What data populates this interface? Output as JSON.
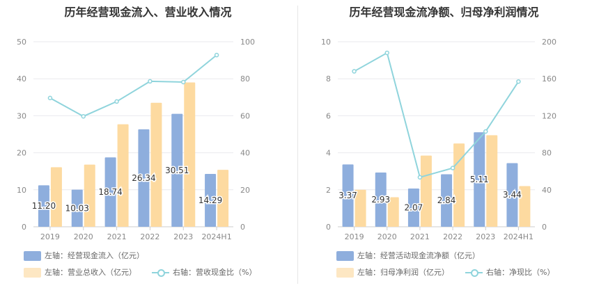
{
  "charts": [
    {
      "title": "历年经营现金流入、营业收入情况",
      "legend": [
        {
          "label": "左轴：经营现金流入（亿元）",
          "color": "#8eaedd"
        },
        {
          "label": "左轴：营业总收入（亿元）",
          "color": "#fddaa0"
        },
        {
          "label": "右轴：营收现金比（%）",
          "color": "#8fd4dc"
        }
      ],
      "chart_data": {
        "type": "bar",
        "categories": [
          "2019",
          "2020",
          "2021",
          "2022",
          "2023",
          "2024H1"
        ],
        "series": [
          {
            "name": "左轴：经营现金流入（亿元）",
            "axis": "left",
            "type": "bar",
            "color": "#8eaedd",
            "values": [
              11.2,
              10.03,
              18.74,
              26.34,
              30.51,
              14.29
            ],
            "labels": [
              "11.20",
              "10.03",
              "18.74",
              "26.34",
              "30.51",
              "14.29"
            ]
          },
          {
            "name": "左轴：营业总收入（亿元）",
            "axis": "left",
            "type": "bar",
            "color": "#fddaa0",
            "values": [
              16.1,
              16.8,
              27.7,
              33.5,
              39.0,
              15.4
            ]
          },
          {
            "name": "右轴：营收现金比（%）",
            "axis": "right",
            "type": "line",
            "color": "#8fd4dc",
            "values": [
              69.6,
              59.7,
              67.7,
              78.6,
              78.2,
              92.8
            ]
          }
        ],
        "left_axis": {
          "min": 0,
          "max": 50,
          "ticks": [
            "0",
            "10",
            "20",
            "30",
            "40",
            "50"
          ]
        },
        "right_axis": {
          "min": 0,
          "max": 100,
          "ticks": [
            "0",
            "20",
            "40",
            "60",
            "80",
            "100"
          ]
        },
        "grid": true
      }
    },
    {
      "title": "历年经营现金流净额、归母净利润情况",
      "legend": [
        {
          "label": "左轴：经营活动现金流净额（亿元）",
          "color": "#8eaedd"
        },
        {
          "label": "左轴：归母净利润（亿元）",
          "color": "#fddaa0"
        },
        {
          "label": "右轴：净现比（%）",
          "color": "#8fd4dc"
        }
      ],
      "chart_data": {
        "type": "bar",
        "categories": [
          "2019",
          "2020",
          "2021",
          "2022",
          "2023",
          "2024H1"
        ],
        "series": [
          {
            "name": "左轴：经营活动现金流净额（亿元）",
            "axis": "left",
            "type": "bar",
            "color": "#8eaedd",
            "values": [
              3.37,
              2.93,
              2.07,
              2.84,
              5.11,
              3.44
            ],
            "labels": [
              "3.37",
              "2.93",
              "2.07",
              "2.84",
              "5.11",
              "3.44"
            ]
          },
          {
            "name": "左轴：归母净利润（亿元）",
            "axis": "left",
            "type": "bar",
            "color": "#fddaa0",
            "values": [
              2.0,
              1.6,
              3.85,
              4.5,
              4.95,
              2.2
            ]
          },
          {
            "name": "右轴：净现比（%）",
            "axis": "right",
            "type": "line",
            "color": "#8fd4dc",
            "values": [
              168,
              188,
              53.5,
              63.5,
              103,
              157
            ]
          }
        ],
        "left_axis": {
          "min": 0,
          "max": 10,
          "ticks": [
            "0",
            "2",
            "4",
            "6",
            "8",
            "10"
          ]
        },
        "right_axis": {
          "min": 0,
          "max": 200,
          "ticks": [
            "0",
            "40",
            "80",
            "120",
            "160",
            "200"
          ]
        },
        "grid": true
      }
    }
  ]
}
